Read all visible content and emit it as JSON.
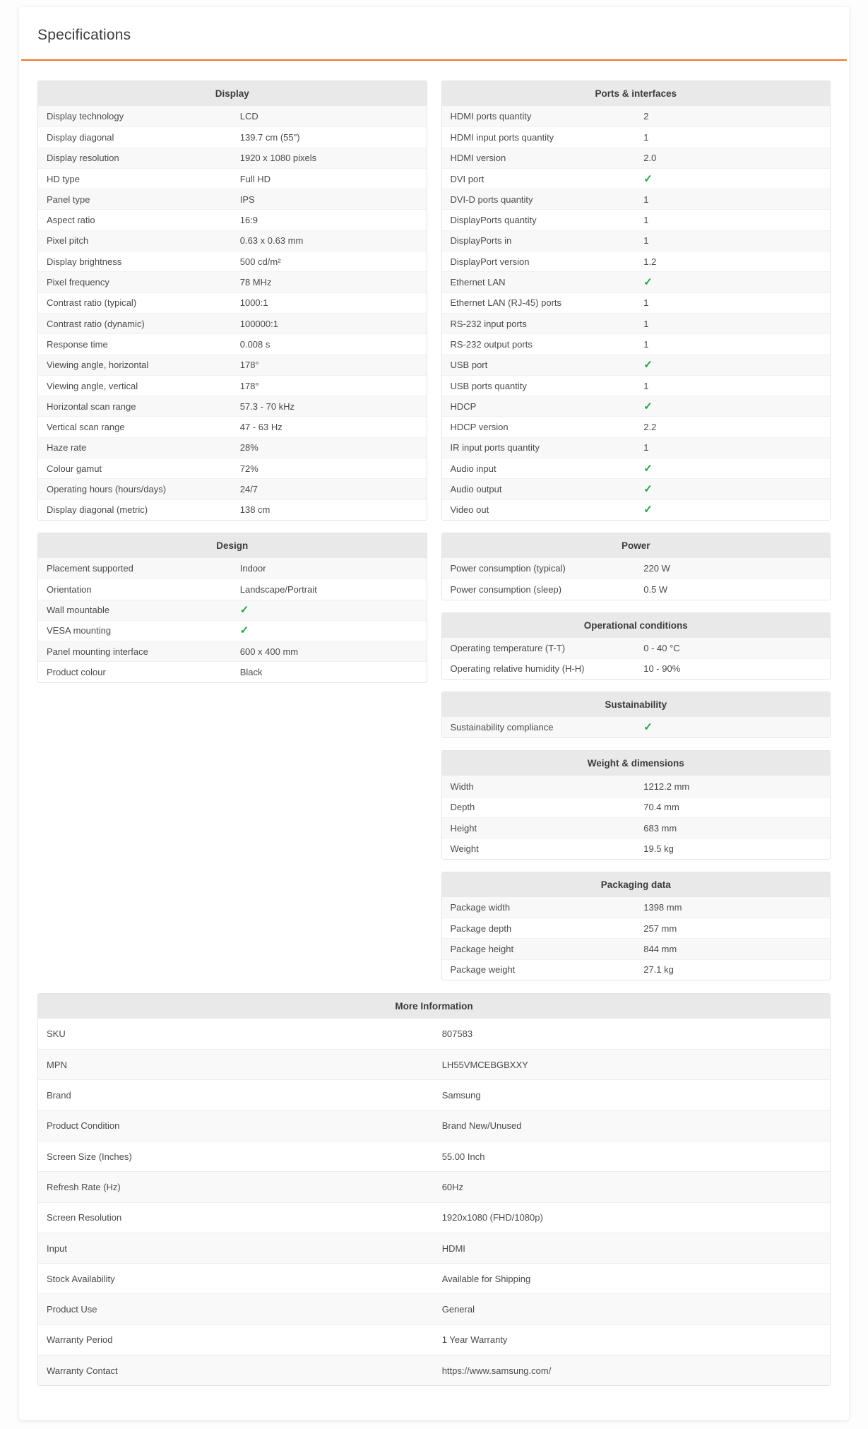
{
  "page": {
    "title": "Specifications"
  },
  "colors": {
    "accent": "#f0771e",
    "check_green": "#1fa344"
  },
  "check_icon": "✓",
  "columns": {
    "left": [
      {
        "title": "Display",
        "rows": [
          {
            "label": "Display technology",
            "value": "LCD"
          },
          {
            "label": "Display diagonal",
            "value": "139.7 cm (55\")"
          },
          {
            "label": "Display resolution",
            "value": "1920 x 1080 pixels"
          },
          {
            "label": "HD type",
            "value": "Full HD"
          },
          {
            "label": "Panel type",
            "value": "IPS"
          },
          {
            "label": "Aspect ratio",
            "value": "16:9"
          },
          {
            "label": "Pixel pitch",
            "value": "0.63 x 0.63 mm"
          },
          {
            "label": "Display brightness",
            "value": "500 cd/m²"
          },
          {
            "label": "Pixel frequency",
            "value": "78 MHz"
          },
          {
            "label": "Contrast ratio (typical)",
            "value": "1000:1"
          },
          {
            "label": "Contrast ratio (dynamic)",
            "value": "100000:1"
          },
          {
            "label": "Response time",
            "value": "0.008 s"
          },
          {
            "label": "Viewing angle, horizontal",
            "value": "178°"
          },
          {
            "label": "Viewing angle, vertical",
            "value": "178°"
          },
          {
            "label": "Horizontal scan range",
            "value": "57.3 - 70 kHz"
          },
          {
            "label": "Vertical scan range",
            "value": "47 - 63 Hz"
          },
          {
            "label": "Haze rate",
            "value": "28%"
          },
          {
            "label": "Colour gamut",
            "value": "72%"
          },
          {
            "label": "Operating hours (hours/days)",
            "value": "24/7"
          },
          {
            "label": "Display diagonal (metric)",
            "value": "138 cm"
          }
        ]
      },
      {
        "title": "Design",
        "rows": [
          {
            "label": "Placement supported",
            "value": "Indoor"
          },
          {
            "label": "Orientation",
            "value": "Landscape/Portrait"
          },
          {
            "label": "Wall mountable",
            "check": true
          },
          {
            "label": "VESA mounting",
            "check": true
          },
          {
            "label": "Panel mounting interface",
            "value": "600 x 400 mm"
          },
          {
            "label": "Product colour",
            "value": "Black"
          }
        ]
      }
    ],
    "right": [
      {
        "title": "Ports & interfaces",
        "rows": [
          {
            "label": "HDMI ports quantity",
            "value": "2"
          },
          {
            "label": "HDMI input ports quantity",
            "value": "1"
          },
          {
            "label": "HDMI version",
            "value": "2.0"
          },
          {
            "label": "DVI port",
            "check": true
          },
          {
            "label": "DVI-D ports quantity",
            "value": "1"
          },
          {
            "label": "DisplayPorts quantity",
            "value": "1"
          },
          {
            "label": "DisplayPorts in",
            "value": "1"
          },
          {
            "label": "DisplayPort version",
            "value": "1.2"
          },
          {
            "label": "Ethernet LAN",
            "check": true
          },
          {
            "label": "Ethernet LAN (RJ-45) ports",
            "value": "1"
          },
          {
            "label": "RS-232 input ports",
            "value": "1"
          },
          {
            "label": "RS-232 output ports",
            "value": "1"
          },
          {
            "label": "USB port",
            "check": true
          },
          {
            "label": "USB ports quantity",
            "value": "1"
          },
          {
            "label": "HDCP",
            "check": true
          },
          {
            "label": "HDCP version",
            "value": "2.2"
          },
          {
            "label": "IR input ports quantity",
            "value": "1"
          },
          {
            "label": "Audio input",
            "check": true
          },
          {
            "label": "Audio output",
            "check": true
          },
          {
            "label": "Video out",
            "check": true
          }
        ]
      },
      {
        "title": "Power",
        "rows": [
          {
            "label": "Power consumption (typical)",
            "value": "220 W"
          },
          {
            "label": "Power consumption (sleep)",
            "value": "0.5 W"
          }
        ]
      },
      {
        "title": "Operational conditions",
        "rows": [
          {
            "label": "Operating temperature (T-T)",
            "value": "0 - 40 °C"
          },
          {
            "label": "Operating relative humidity (H-H)",
            "value": "10 - 90%"
          }
        ]
      },
      {
        "title": "Sustainability",
        "rows": [
          {
            "label": "Sustainability compliance",
            "check": true
          }
        ]
      },
      {
        "title": "Weight & dimensions",
        "rows": [
          {
            "label": "Width",
            "value": "1212.2 mm"
          },
          {
            "label": "Depth",
            "value": "70.4 mm"
          },
          {
            "label": "Height",
            "value": "683 mm"
          },
          {
            "label": "Weight",
            "value": "19.5 kg"
          }
        ]
      },
      {
        "title": "Packaging data",
        "rows": [
          {
            "label": "Package width",
            "value": "1398 mm"
          },
          {
            "label": "Package depth",
            "value": "257 mm"
          },
          {
            "label": "Package height",
            "value": "844 mm"
          },
          {
            "label": "Package weight",
            "value": "27.1 kg"
          }
        ]
      }
    ]
  },
  "more_information": {
    "title": "More Information",
    "rows": [
      {
        "label": "SKU",
        "value": "807583"
      },
      {
        "label": "MPN",
        "value": "LH55VMCEBGBXXY"
      },
      {
        "label": "Brand",
        "value": "Samsung"
      },
      {
        "label": "Product Condition",
        "value": "Brand New/Unused"
      },
      {
        "label": "Screen Size (Inches)",
        "value": "55.00 Inch"
      },
      {
        "label": "Refresh Rate (Hz)",
        "value": "60Hz"
      },
      {
        "label": "Screen Resolution",
        "value": "1920x1080 (FHD/1080p)"
      },
      {
        "label": "Input",
        "value": "HDMI"
      },
      {
        "label": "Stock Availability",
        "value": "Available for Shipping"
      },
      {
        "label": "Product Use",
        "value": "General"
      },
      {
        "label": "Warranty Period",
        "value": "1 Year Warranty"
      },
      {
        "label": "Warranty Contact",
        "value": "https://www.samsung.com/"
      }
    ]
  }
}
